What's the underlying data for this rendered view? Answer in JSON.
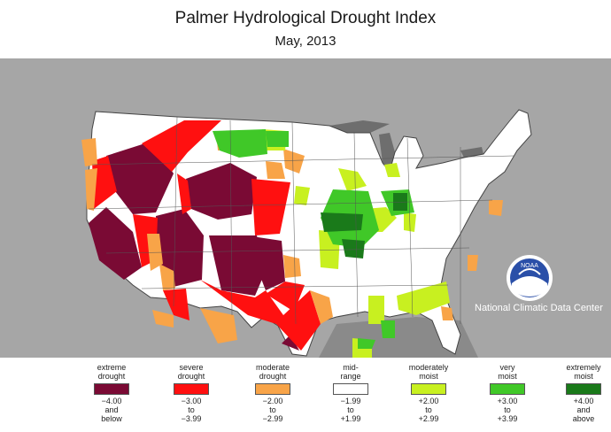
{
  "header": {
    "title": "Palmer Hydrological Drought Index",
    "subtitle": "May, 2013"
  },
  "agency": {
    "name": "National Climatic Data Center",
    "logo_text": "NOAA"
  },
  "colors": {
    "background_land": "#a6a6a6",
    "water": "#6e6e6e",
    "extreme_drought": "#7a0a34",
    "severe_drought": "#ff1010",
    "moderate_drought": "#f8a448",
    "mid_range": "#ffffff",
    "moderately_moist": "#c8f020",
    "very_moist": "#40c828",
    "extremely_moist": "#1a7a1a"
  },
  "legend": [
    {
      "label": [
        "extreme",
        "drought"
      ],
      "range": [
        "−4.00",
        "and",
        "below"
      ],
      "color": "#7a0a34"
    },
    {
      "label": [
        "severe",
        "drought"
      ],
      "range": [
        "−3.00",
        "to",
        "−3.99"
      ],
      "color": "#ff1010"
    },
    {
      "label": [
        "moderate",
        "drought"
      ],
      "range": [
        "−2.00",
        "to",
        "−2.99"
      ],
      "color": "#f8a448"
    },
    {
      "label": [
        "mid-",
        "range"
      ],
      "range": [
        "−1.99",
        "to",
        "+1.99"
      ],
      "color": "#ffffff"
    },
    {
      "label": [
        "moderately",
        "moist"
      ],
      "range": [
        "+2.00",
        "to",
        "+2.99"
      ],
      "color": "#c8f020"
    },
    {
      "label": [
        "very",
        "moist"
      ],
      "range": [
        "+3.00",
        "to",
        "+3.99"
      ],
      "color": "#40c828"
    },
    {
      "label": [
        "extremely",
        "moist"
      ],
      "range": [
        "+4.00",
        "and",
        "above"
      ],
      "color": "#1a7a1a"
    }
  ]
}
